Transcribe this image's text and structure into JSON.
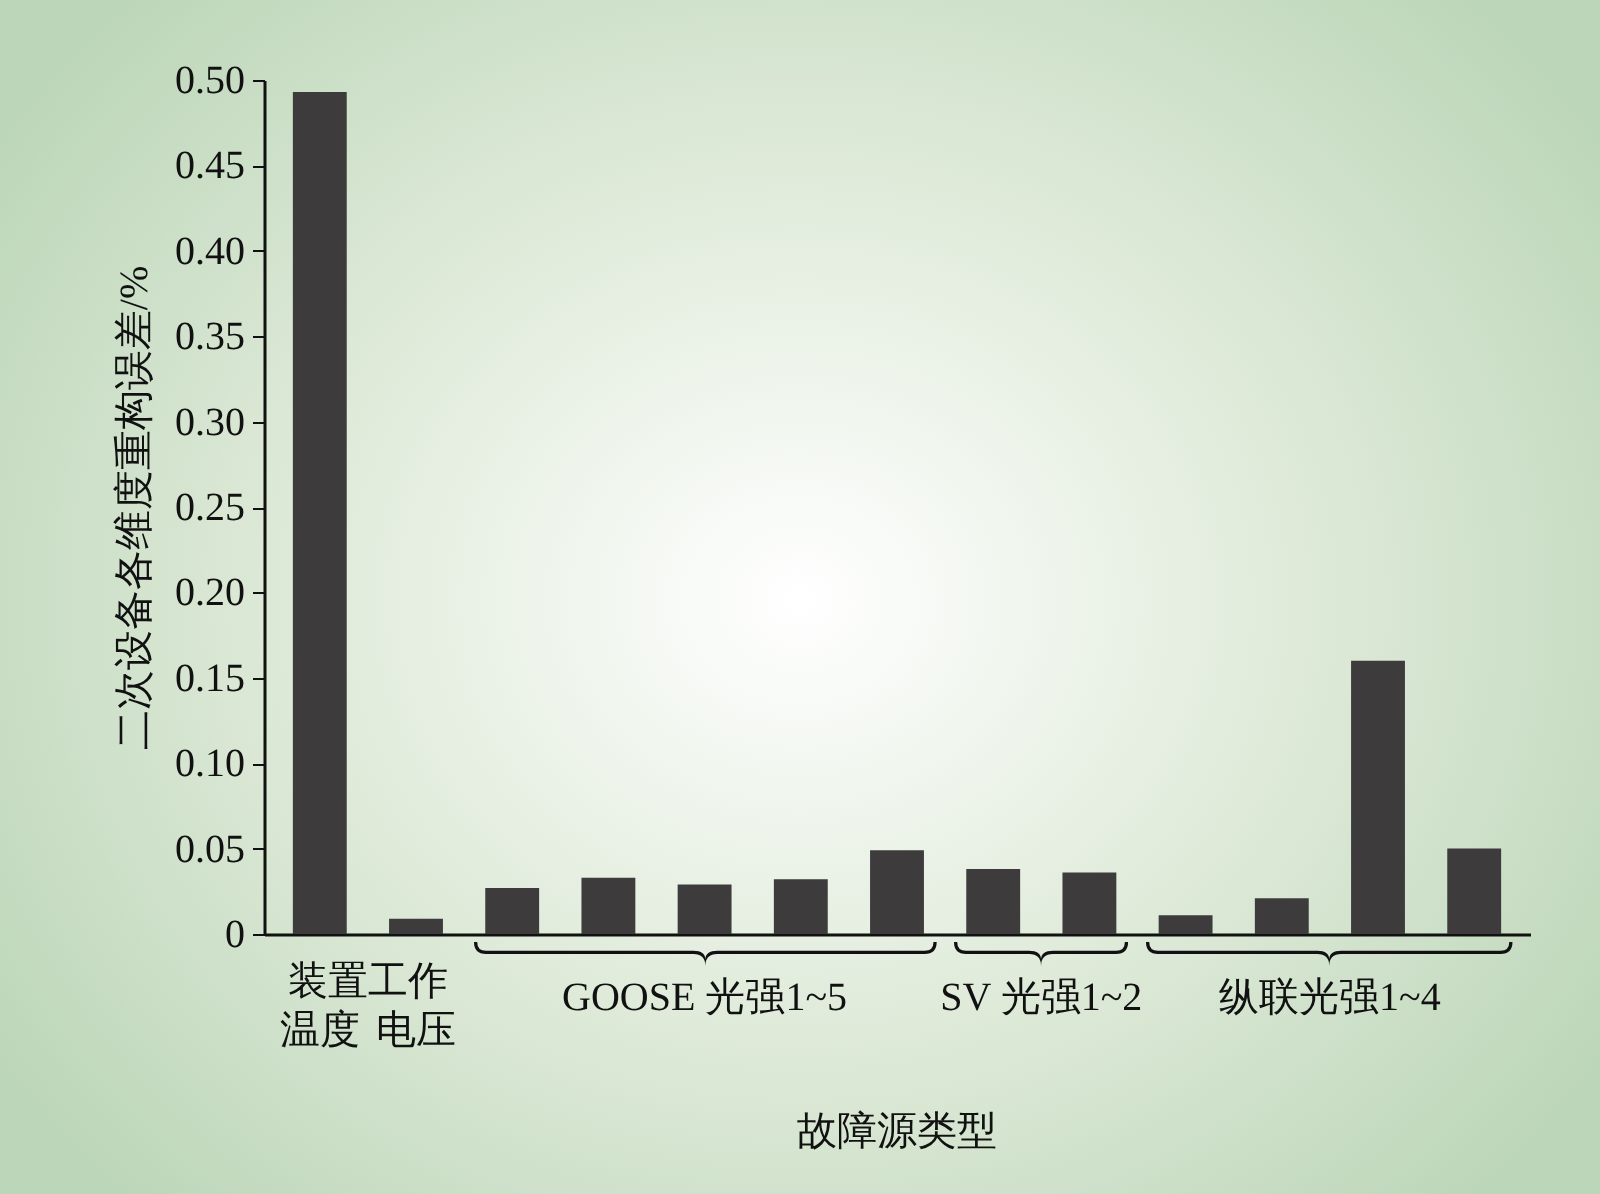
{
  "chart_data": {
    "type": "bar",
    "xlabel": "故障源类型",
    "ylabel": "二次设备各维度重构误差/%",
    "categories": [
      "温度",
      "电压",
      null,
      null,
      null,
      null,
      null,
      null,
      null,
      null,
      null,
      null,
      null
    ],
    "values": [
      0.493,
      0.009,
      0.027,
      0.033,
      0.029,
      0.032,
      0.049,
      0.038,
      0.036,
      0.011,
      0.021,
      0.16,
      0.05
    ],
    "color": "#3d3b3c",
    "ylim": [
      0,
      0.5
    ],
    "yticks": [
      0,
      0.05,
      {
        "value": 0.1,
        "label": "0.10"
      },
      0.15,
      {
        "value": 0.2,
        "label": "0.20"
      },
      0.25,
      {
        "value": 0.3,
        "label": "0.30"
      },
      0.35,
      {
        "value": 0.4,
        "label": "0.40"
      },
      0.45,
      {
        "value": 0.5,
        "label": "0.50"
      }
    ],
    "annotations": [
      "装置工作",
      "GOOSE 光强1~5",
      "SV 光强1~2",
      "纵联光强1~4"
    ]
  }
}
